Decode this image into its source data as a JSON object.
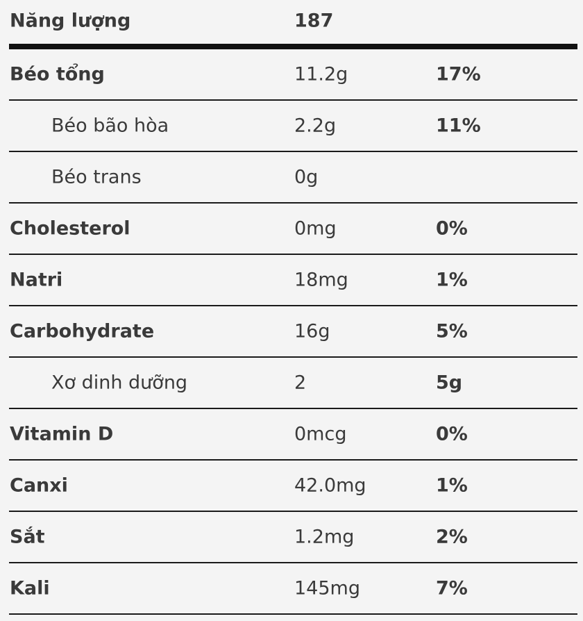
{
  "energy": {
    "label": "Năng lượng",
    "value": "187"
  },
  "rows": [
    {
      "name": "Béo tổng",
      "amount": "11.2g",
      "dv": "17%"
    },
    {
      "name": "Béo bão hòa",
      "amount": "2.2g",
      "dv": "11%"
    },
    {
      "name": "Béo trans",
      "amount": "0g",
      "dv": ""
    },
    {
      "name": "Cholesterol",
      "amount": "0mg",
      "dv": "0%"
    },
    {
      "name": "Natri",
      "amount": "18mg",
      "dv": "1%"
    },
    {
      "name": "Carbohydrate",
      "amount": "16g",
      "dv": "5%"
    },
    {
      "name": "Xơ dinh dưỡng",
      "amount": "2",
      "dv": "5g"
    },
    {
      "name": "Vitamin D",
      "amount": "0mcg",
      "dv": "0%"
    },
    {
      "name": "Canxi",
      "amount": "42.0mg",
      "dv": "1%"
    },
    {
      "name": "Sắt",
      "amount": "1.2mg",
      "dv": "2%"
    },
    {
      "name": "Kali",
      "amount": "145mg",
      "dv": "7%"
    }
  ]
}
